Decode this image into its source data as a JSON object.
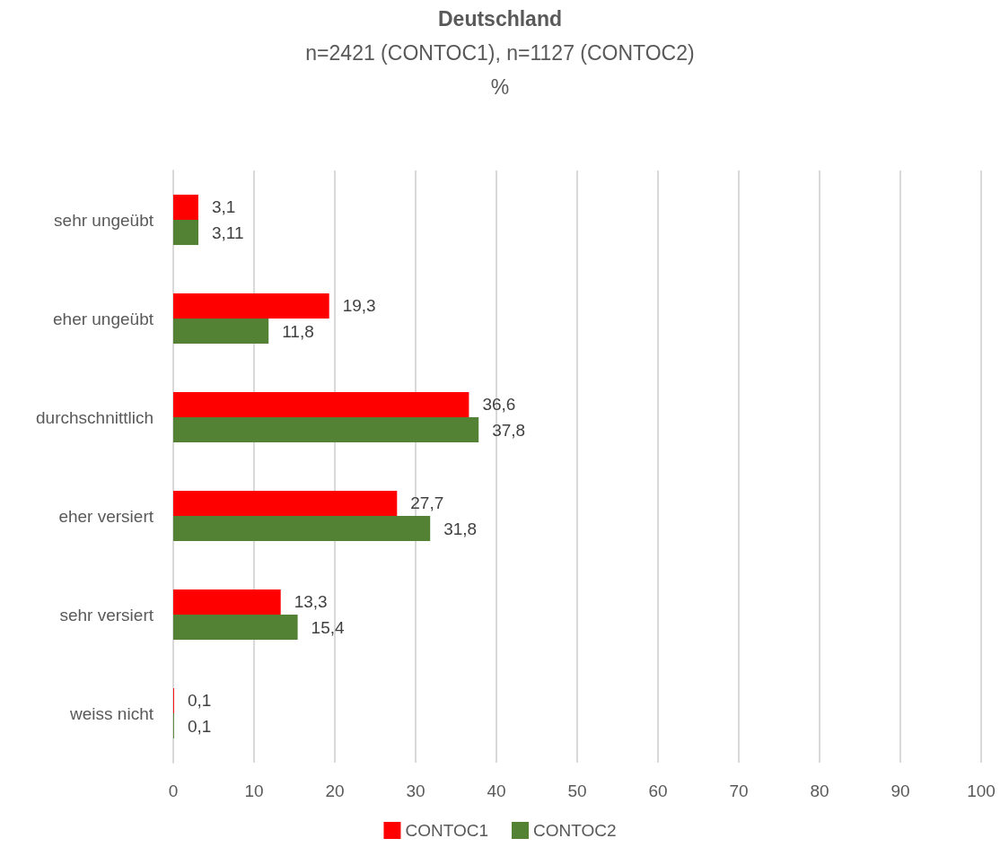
{
  "chart_data": {
    "type": "bar",
    "orientation": "horizontal",
    "title": "Deutschland",
    "subtitle": "n=2421 (CONTOC1), n=1127 (CONTOC2)\n%",
    "categories": [
      "sehr ungeübt",
      "eher ungeübt",
      "durchschnittlich",
      "eher versiert",
      "sehr versiert",
      "weiss nicht"
    ],
    "series": [
      {
        "name": "CONTOC1",
        "color": "#ff0000",
        "values": [
          3.1,
          19.3,
          36.6,
          27.7,
          13.3,
          0.1
        ],
        "value_labels": [
          "3,1",
          "19,3",
          "36,6",
          "27,7",
          "13,3",
          "0,1"
        ]
      },
      {
        "name": "CONTOC2",
        "color": "#548235",
        "values": [
          3.11,
          11.8,
          37.8,
          31.8,
          15.4,
          0.1
        ],
        "value_labels": [
          "3,11",
          "11,8",
          "37,8",
          "31,8",
          "15,4",
          "0,1"
        ]
      }
    ],
    "xlim": [
      0,
      100
    ],
    "xticks": [
      0,
      10,
      20,
      30,
      40,
      50,
      60,
      70,
      80,
      90,
      100
    ],
    "grid": "x",
    "legend": "bottom"
  }
}
